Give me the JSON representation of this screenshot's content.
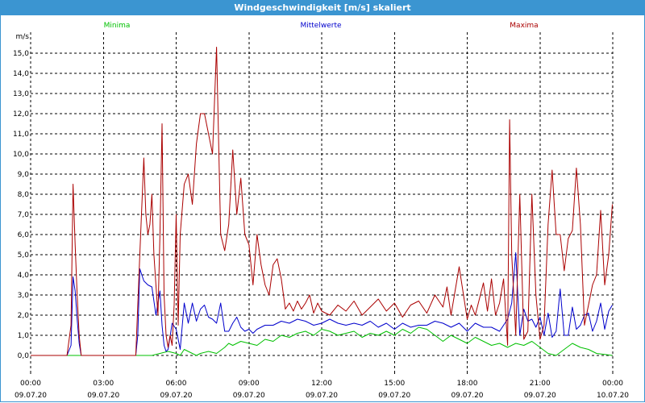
{
  "window": {
    "title": "Windgeschwindigkeit [m/s] skaliert"
  },
  "colors": {
    "titlebar": "#3b95d1",
    "minima": "#00c000",
    "mittelwerte": "#0000cc",
    "maxima": "#aa0000",
    "grid": "#000000"
  },
  "chart_data": {
    "type": "line",
    "ylabel": "m/s",
    "ylim": [
      0,
      15.5
    ],
    "yticks": [
      "0,0",
      "1,0",
      "2,0",
      "3,0",
      "4,0",
      "5,0",
      "6,0",
      "7,0",
      "8,0",
      "9,0",
      "10,0",
      "11,0",
      "12,0",
      "13,0",
      "14,0",
      "15,0"
    ],
    "xlim": [
      "2020-07-09 00:00",
      "2020-07-10 00:00"
    ],
    "xticks": [
      {
        "time": "00:00",
        "date": "09.07.20"
      },
      {
        "time": "03:00",
        "date": "09.07.20"
      },
      {
        "time": "06:00",
        "date": "09.07.20"
      },
      {
        "time": "09:00",
        "date": "09.07.20"
      },
      {
        "time": "12:00",
        "date": "09.07.20"
      },
      {
        "time": "15:00",
        "date": "09.07.20"
      },
      {
        "time": "18:00",
        "date": "09.07.20"
      },
      {
        "time": "21:00",
        "date": "09.07.20"
      },
      {
        "time": "00:00",
        "date": "10.07.20"
      }
    ],
    "grid": true,
    "legend_position": "top",
    "series": [
      {
        "name": "Minima",
        "color": "#00c000",
        "x": [
          "00:00",
          "01:40",
          "01:50",
          "02:05",
          "04:30",
          "05:00",
          "05:20",
          "05:40",
          "06:00",
          "06:10",
          "06:20",
          "06:30",
          "06:50",
          "07:00",
          "07:20",
          "07:40",
          "08:00",
          "08:10",
          "08:20",
          "08:40",
          "09:00",
          "09:20",
          "09:40",
          "10:00",
          "10:20",
          "10:40",
          "11:00",
          "11:20",
          "11:40",
          "12:00",
          "12:20",
          "12:40",
          "13:00",
          "13:20",
          "13:40",
          "14:00",
          "14:20",
          "14:40",
          "15:00",
          "15:20",
          "15:40",
          "16:00",
          "16:20",
          "16:40",
          "17:00",
          "17:20",
          "17:40",
          "18:00",
          "18:20",
          "18:40",
          "19:00",
          "19:20",
          "19:40",
          "20:00",
          "20:20",
          "20:40",
          "21:00",
          "21:20",
          "21:40",
          "22:00",
          "22:20",
          "22:40",
          "23:00",
          "23:20",
          "23:40",
          "23:59"
        ],
        "values": [
          0.0,
          0.0,
          0.0,
          0.0,
          0.0,
          0.0,
          0.1,
          0.2,
          0.1,
          0.0,
          0.3,
          0.2,
          0.0,
          0.1,
          0.2,
          0.1,
          0.4,
          0.6,
          0.5,
          0.7,
          0.6,
          0.5,
          0.8,
          0.7,
          1.0,
          0.9,
          1.1,
          1.2,
          1.0,
          1.3,
          1.2,
          1.0,
          1.1,
          1.2,
          0.9,
          1.1,
          1.0,
          1.2,
          1.0,
          1.3,
          1.1,
          1.4,
          1.3,
          1.0,
          0.7,
          1.0,
          0.8,
          0.6,
          0.9,
          0.7,
          0.5,
          0.6,
          0.4,
          0.6,
          0.5,
          0.7,
          0.4,
          0.1,
          0.0,
          0.3,
          0.6,
          0.4,
          0.3,
          0.1,
          0.05,
          0.0
        ]
      },
      {
        "name": "Mittelwerte",
        "color": "#0000cc",
        "x": [
          "00:00",
          "01:30",
          "01:40",
          "01:45",
          "01:50",
          "01:55",
          "02:00",
          "02:05",
          "04:20",
          "04:25",
          "04:30",
          "04:40",
          "04:50",
          "05:00",
          "05:10",
          "05:20",
          "05:25",
          "05:30",
          "05:35",
          "05:40",
          "05:50",
          "06:00",
          "06:10",
          "06:20",
          "06:30",
          "06:40",
          "06:50",
          "07:00",
          "07:10",
          "07:20",
          "07:30",
          "07:40",
          "07:50",
          "08:00",
          "08:10",
          "08:20",
          "08:30",
          "08:40",
          "08:50",
          "09:00",
          "09:10",
          "09:20",
          "09:30",
          "09:40",
          "10:00",
          "10:20",
          "10:40",
          "11:00",
          "11:20",
          "11:40",
          "12:00",
          "12:20",
          "12:40",
          "13:00",
          "13:20",
          "13:40",
          "14:00",
          "14:20",
          "14:40",
          "15:00",
          "15:20",
          "15:40",
          "16:00",
          "16:20",
          "16:40",
          "17:00",
          "17:20",
          "17:40",
          "18:00",
          "18:20",
          "18:40",
          "19:00",
          "19:20",
          "19:40",
          "19:50",
          "20:00",
          "20:10",
          "20:20",
          "20:30",
          "20:40",
          "20:50",
          "21:00",
          "21:10",
          "21:20",
          "21:30",
          "21:40",
          "21:50",
          "22:00",
          "22:10",
          "22:20",
          "22:30",
          "22:40",
          "22:50",
          "23:00",
          "23:10",
          "23:20",
          "23:30",
          "23:40",
          "23:50",
          "23:59"
        ],
        "values": [
          0.0,
          0.0,
          0.5,
          3.9,
          3.2,
          1.8,
          0.6,
          0.0,
          0.0,
          1.0,
          4.3,
          3.7,
          3.5,
          3.4,
          2.0,
          3.2,
          1.5,
          0.5,
          0.2,
          0.3,
          1.6,
          1.3,
          0.3,
          2.6,
          1.6,
          2.6,
          1.7,
          2.3,
          2.5,
          1.9,
          1.8,
          1.6,
          2.6,
          1.2,
          1.2,
          1.6,
          1.9,
          1.4,
          1.2,
          1.3,
          1.1,
          1.3,
          1.4,
          1.5,
          1.5,
          1.7,
          1.6,
          1.8,
          1.7,
          1.5,
          1.6,
          1.8,
          1.6,
          1.5,
          1.6,
          1.5,
          1.7,
          1.4,
          1.6,
          1.3,
          1.6,
          1.4,
          1.5,
          1.5,
          1.7,
          1.6,
          1.4,
          1.6,
          1.2,
          1.6,
          1.4,
          1.4,
          1.2,
          1.8,
          2.6,
          5.1,
          1.0,
          2.3,
          1.7,
          1.8,
          1.4,
          1.9,
          1.0,
          2.1,
          0.9,
          1.2,
          3.3,
          1.0,
          1.0,
          2.4,
          1.3,
          1.5,
          2.0,
          2.1,
          1.2,
          1.7,
          2.6,
          1.3,
          2.2,
          2.5
        ]
      },
      {
        "name": "Maxima",
        "color": "#aa0000",
        "x": [
          "00:00",
          "01:30",
          "01:40",
          "01:45",
          "01:50",
          "01:55",
          "02:00",
          "02:05",
          "04:20",
          "04:30",
          "04:40",
          "04:45",
          "04:50",
          "04:55",
          "05:00",
          "05:05",
          "05:10",
          "05:15",
          "05:20",
          "05:25",
          "05:30",
          "05:35",
          "05:40",
          "05:45",
          "05:50",
          "05:55",
          "06:00",
          "06:05",
          "06:10",
          "06:20",
          "06:30",
          "06:40",
          "06:50",
          "07:00",
          "07:10",
          "07:20",
          "07:30",
          "07:40",
          "07:50",
          "08:00",
          "08:10",
          "08:20",
          "08:30",
          "08:40",
          "08:50",
          "09:00",
          "09:10",
          "09:20",
          "09:30",
          "09:40",
          "09:50",
          "10:00",
          "10:10",
          "10:20",
          "10:30",
          "10:40",
          "10:50",
          "11:00",
          "11:10",
          "11:20",
          "11:30",
          "11:40",
          "11:50",
          "12:00",
          "12:20",
          "12:40",
          "13:00",
          "13:20",
          "13:40",
          "14:00",
          "14:20",
          "14:40",
          "15:00",
          "15:20",
          "15:40",
          "16:00",
          "16:20",
          "16:40",
          "17:00",
          "17:10",
          "17:20",
          "17:40",
          "18:00",
          "18:10",
          "18:20",
          "18:40",
          "18:50",
          "19:00",
          "19:10",
          "19:20",
          "19:30",
          "19:40",
          "19:45",
          "19:50",
          "19:55",
          "20:00",
          "20:10",
          "20:20",
          "20:30",
          "20:40",
          "20:50",
          "21:00",
          "21:10",
          "21:20",
          "21:30",
          "21:40",
          "21:50",
          "22:00",
          "22:10",
          "22:20",
          "22:30",
          "22:40",
          "22:50",
          "23:00",
          "23:10",
          "23:20",
          "23:30",
          "23:40",
          "23:50",
          "23:59"
        ],
        "values": [
          0.0,
          0.0,
          1.5,
          8.5,
          5.5,
          3.0,
          1.0,
          0.0,
          0.0,
          5.0,
          9.8,
          7.0,
          6.0,
          6.5,
          8.0,
          5.0,
          3.5,
          2.0,
          6.0,
          11.5,
          3.0,
          1.0,
          0.4,
          1.0,
          0.5,
          2.5,
          7.0,
          1.5,
          6.0,
          8.5,
          9.0,
          7.5,
          10.5,
          12.0,
          12.0,
          11.0,
          10.0,
          15.3,
          6.0,
          5.2,
          6.5,
          10.2,
          7.0,
          8.8,
          6.0,
          5.5,
          3.5,
          6.0,
          4.5,
          3.5,
          3.0,
          4.5,
          4.8,
          3.8,
          2.3,
          2.6,
          2.2,
          2.7,
          2.3,
          2.6,
          3.0,
          2.1,
          2.6,
          2.2,
          2.0,
          2.5,
          2.2,
          2.7,
          2.0,
          2.4,
          2.8,
          2.2,
          2.6,
          1.9,
          2.5,
          2.7,
          2.1,
          3.0,
          2.4,
          3.4,
          2.0,
          4.4,
          1.8,
          2.5,
          2.0,
          3.6,
          2.2,
          3.8,
          2.0,
          2.6,
          3.8,
          0.5,
          11.7,
          5.0,
          3.0,
          1.0,
          8.0,
          0.8,
          1.2,
          8.0,
          3.0,
          0.8,
          1.5,
          6.5,
          9.2,
          6.0,
          6.0,
          4.2,
          5.8,
          6.2,
          9.3,
          6.5,
          1.5,
          2.5,
          3.5,
          4.0,
          7.2,
          3.5,
          5.0,
          7.5
        ]
      }
    ]
  }
}
